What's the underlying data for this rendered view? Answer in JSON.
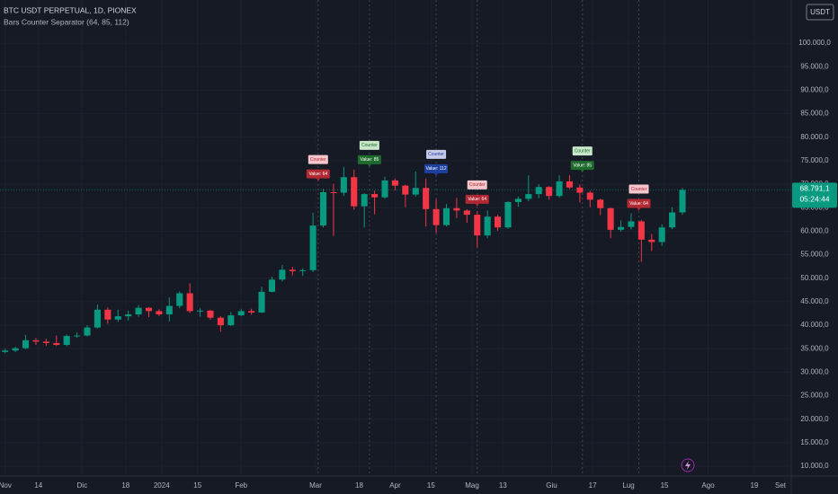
{
  "chart_data": {
    "type": "candlestick",
    "title": "BTC USDT PERPETUAL, 1D, PIONEX",
    "subtitle": "Bars Counter Separator (64, 85, 112)",
    "currency": "USDT",
    "x": [
      "2023-11-01",
      "2023-11-05",
      "2023-11-09",
      "2023-11-13",
      "2023-11-17",
      "2023-11-21",
      "2023-11-25",
      "2023-11-29",
      "2023-12-03",
      "2023-12-07",
      "2023-12-11",
      "2023-12-15",
      "2023-12-19",
      "2023-12-23",
      "2023-12-27",
      "2023-12-31",
      "2024-01-04",
      "2024-01-08",
      "2024-01-12",
      "2024-01-16",
      "2024-01-20",
      "2024-01-24",
      "2024-01-28",
      "2024-02-01",
      "2024-02-05",
      "2024-02-09",
      "2024-02-13",
      "2024-02-17",
      "2024-02-21",
      "2024-02-25",
      "2024-02-29",
      "2024-03-04",
      "2024-03-08",
      "2024-03-12",
      "2024-03-16",
      "2024-03-20",
      "2024-03-24",
      "2024-03-28",
      "2024-04-01",
      "2024-04-05",
      "2024-04-09",
      "2024-04-13",
      "2024-04-17",
      "2024-04-21",
      "2024-04-25",
      "2024-04-29",
      "2024-05-03",
      "2024-05-07",
      "2024-05-11",
      "2024-05-15",
      "2024-05-19",
      "2024-05-23",
      "2024-05-27",
      "2024-05-31",
      "2024-06-04",
      "2024-06-08",
      "2024-06-12",
      "2024-06-16",
      "2024-06-20",
      "2024-06-24",
      "2024-06-28",
      "2024-07-02",
      "2024-07-06",
      "2024-07-10",
      "2024-07-14",
      "2024-07-18",
      "2024-07-22"
    ],
    "open": [
      34300,
      34600,
      35100,
      36800,
      36500,
      36200,
      35800,
      37700,
      37800,
      39500,
      43300,
      41200,
      41900,
      42300,
      43700,
      43000,
      42300,
      44100,
      46800,
      43000,
      43100,
      41600,
      40000,
      42100,
      43000,
      42700,
      47100,
      49700,
      51800,
      51500,
      51700,
      61200,
      68300,
      68200,
      71500,
      65300,
      67900,
      67200,
      70800,
      69700,
      67800,
      69200,
      64700,
      61300,
      64900,
      64400,
      63500,
      59100,
      63100,
      60800,
      66200,
      66900,
      67900,
      69400,
      67500,
      70600,
      69300,
      68200,
      66700,
      64900,
      60300,
      60900,
      62100,
      58200,
      57700,
      60800,
      64000
    ],
    "high": [
      35000,
      35400,
      37900,
      37300,
      37100,
      37800,
      38000,
      38500,
      40000,
      44400,
      43800,
      43300,
      43100,
      44300,
      43800,
      43400,
      45900,
      47200,
      48900,
      43600,
      43300,
      41900,
      42800,
      43500,
      43500,
      48200,
      50300,
      52800,
      52400,
      52100,
      63900,
      69000,
      70100,
      73700,
      73100,
      68100,
      68600,
      71600,
      71200,
      69900,
      72700,
      71200,
      66800,
      65800,
      67100,
      64700,
      64200,
      64400,
      63500,
      66400,
      67400,
      71900,
      70000,
      69600,
      71900,
      71900,
      70000,
      68600,
      66900,
      65000,
      62300,
      63800,
      62400,
      59400,
      61500,
      65100,
      69200
    ],
    "low": [
      34000,
      34300,
      34900,
      35800,
      35600,
      35600,
      35500,
      37300,
      37600,
      39300,
      40300,
      40700,
      41000,
      41800,
      41700,
      41900,
      40800,
      43600,
      42600,
      41800,
      41200,
      38600,
      39800,
      41900,
      42200,
      42600,
      47000,
      49300,
      50600,
      50500,
      51300,
      60800,
      59000,
      67500,
      64600,
      60800,
      63600,
      66900,
      68700,
      65100,
      67400,
      61000,
      59600,
      61000,
      62800,
      61800,
      56600,
      58500,
      60100,
      60500,
      65200,
      66400,
      67000,
      66700,
      67100,
      69000,
      66100,
      65100,
      63400,
      58500,
      59900,
      60400,
      53500,
      55800,
      56900,
      60400,
      63500
    ],
    "close": [
      34600,
      35100,
      36800,
      36500,
      36200,
      35800,
      37700,
      37800,
      39500,
      43300,
      41200,
      41900,
      42300,
      43700,
      43000,
      42300,
      44100,
      46800,
      43000,
      43100,
      41600,
      40000,
      42100,
      43000,
      42700,
      47100,
      49700,
      51800,
      51500,
      51700,
      61200,
      68300,
      68200,
      71500,
      65300,
      67900,
      67200,
      70800,
      69700,
      67800,
      69200,
      64700,
      61300,
      64900,
      64400,
      63500,
      59100,
      63100,
      60800,
      66200,
      66900,
      67900,
      69400,
      67500,
      70600,
      69300,
      68200,
      66700,
      64900,
      60300,
      60900,
      62100,
      58200,
      57700,
      60800,
      64000,
      68791.1
    ],
    "colors": {
      "up": "#089981",
      "down": "#f23645"
    },
    "xlim": [
      "2023-10-30",
      "2024-09-01"
    ],
    "xticks": [
      {
        "value": "2023-11-01",
        "label": "Nov"
      },
      {
        "value": "2023-11-14",
        "label": "14"
      },
      {
        "value": "2023-12-01",
        "label": "Dic"
      },
      {
        "value": "2023-12-18",
        "label": "18"
      },
      {
        "value": "2024-01-01",
        "label": "2024"
      },
      {
        "value": "2024-01-15",
        "label": "15"
      },
      {
        "value": "2024-02-01",
        "label": "Feb"
      },
      {
        "value": "2024-03-01",
        "label": "Mar"
      },
      {
        "value": "2024-03-18",
        "label": "18"
      },
      {
        "value": "2024-04-01",
        "label": "Apr"
      },
      {
        "value": "2024-04-15",
        "label": "15"
      },
      {
        "value": "2024-05-01",
        "label": "Mag"
      },
      {
        "value": "2024-05-13",
        "label": "13"
      },
      {
        "value": "2024-06-01",
        "label": "Giu"
      },
      {
        "value": "2024-06-17",
        "label": "17"
      },
      {
        "value": "2024-07-01",
        "label": "Lug"
      },
      {
        "value": "2024-07-15",
        "label": "15"
      },
      {
        "value": "2024-08-01",
        "label": "Ago"
      },
      {
        "value": "2024-08-19",
        "label": "19"
      },
      {
        "value": "2024-09-01",
        "label": "Set"
      }
    ],
    "ylim": [
      7900,
      109200
    ],
    "yticks": [
      {
        "value": 10000,
        "label": "10.000,0"
      },
      {
        "value": 15000,
        "label": "15.000,0"
      },
      {
        "value": 20000,
        "label": "20.000,0"
      },
      {
        "value": 25000,
        "label": "25.000,0"
      },
      {
        "value": 30000,
        "label": "30.000,0"
      },
      {
        "value": 35000,
        "label": "35.000,0"
      },
      {
        "value": 40000,
        "label": "40.000,0"
      },
      {
        "value": 45000,
        "label": "45.000,0"
      },
      {
        "value": 50000,
        "label": "50.000,0"
      },
      {
        "value": 55000,
        "label": "55.000,0"
      },
      {
        "value": 60000,
        "label": "60.000,0"
      },
      {
        "value": 65000,
        "label": "65.000,0"
      },
      {
        "value": 70000,
        "label": "70.000,0"
      },
      {
        "value": 75000,
        "label": "75.000,0"
      },
      {
        "value": 80000,
        "label": "80.000,0"
      },
      {
        "value": 85000,
        "label": "85.000,0"
      },
      {
        "value": 90000,
        "label": "90.000,0"
      },
      {
        "value": 95000,
        "label": "95.000,0"
      },
      {
        "value": 100000,
        "label": "100.000,0"
      }
    ],
    "grid": true,
    "last_price": {
      "value": 68791.1,
      "label": "68.791,1",
      "countdown": "05:24:44"
    },
    "annotations": [
      {
        "x": "2024-03-02",
        "title": "Counter",
        "text": "Value: 64",
        "color": "#b22833",
        "light": "#f5c6cb"
      },
      {
        "x": "2024-03-22",
        "title": "Counter",
        "text": "Value: 85",
        "color": "#1e6b2e",
        "light": "#c8e6c9"
      },
      {
        "x": "2024-04-17",
        "title": "Counter",
        "text": "Value: 112",
        "color": "#1e40a0",
        "light": "#c5cae9"
      },
      {
        "x": "2024-05-03",
        "title": "Counter",
        "text": "Value: 64",
        "color": "#b22833",
        "light": "#f5c6cb"
      },
      {
        "x": "2024-06-13",
        "title": "Counter",
        "text": "Value: 85",
        "color": "#1e6b2e",
        "light": "#c8e6c9"
      },
      {
        "x": "2024-07-05",
        "title": "Counter",
        "text": "Value: 64",
        "color": "#b22833",
        "light": "#f5c6cb"
      }
    ]
  }
}
